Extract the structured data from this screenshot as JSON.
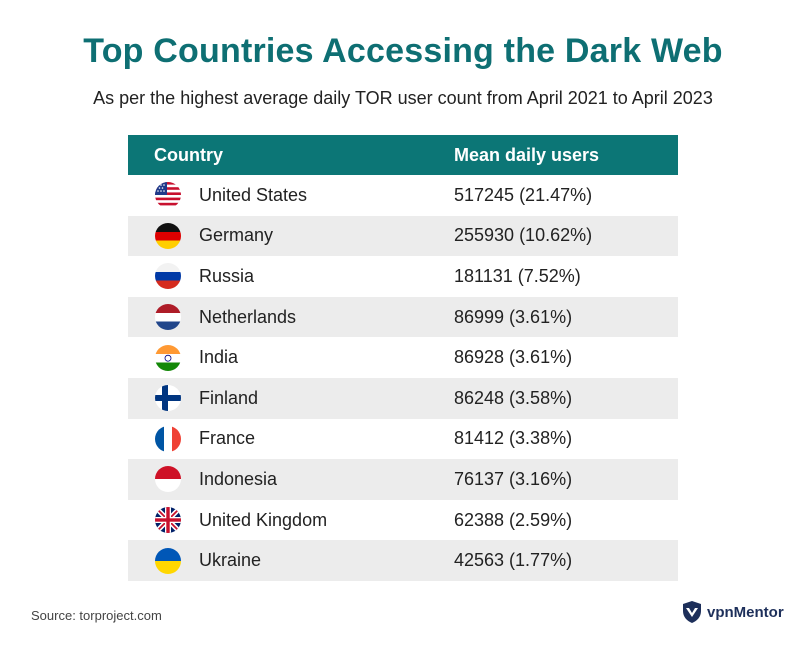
{
  "title": "Top Countries Accessing the Dark Web",
  "subtitle": "As per the highest average daily TOR user count from April 2021 to April 2023",
  "chart_data": {
    "type": "table",
    "columns": [
      "Country",
      "Mean daily users"
    ],
    "rows": [
      {
        "country": "United States",
        "flag": "us-flag-icon",
        "users": 517245,
        "display": "517245 (21.47%)"
      },
      {
        "country": "Germany",
        "flag": "de-flag-icon",
        "users": 255930,
        "display": "255930 (10.62%)"
      },
      {
        "country": "Russia",
        "flag": "ru-flag-icon",
        "users": 181131,
        "display": "181131 (7.52%)"
      },
      {
        "country": "Netherlands",
        "flag": "nl-flag-icon",
        "users": 86999,
        "display": "86999 (3.61%)"
      },
      {
        "country": "India",
        "flag": "in-flag-icon",
        "users": 86928,
        "display": "86928 (3.61%)"
      },
      {
        "country": "Finland",
        "flag": "fi-flag-icon",
        "users": 86248,
        "display": "86248 (3.58%)"
      },
      {
        "country": "France",
        "flag": "fr-flag-icon",
        "users": 81412,
        "display": "81412 (3.38%)"
      },
      {
        "country": "Indonesia",
        "flag": "id-flag-icon",
        "users": 76137,
        "display": "76137 (3.16%)"
      },
      {
        "country": "United Kingdom",
        "flag": "gb-flag-icon",
        "users": 62388,
        "display": "62388 (2.59%)"
      },
      {
        "country": "Ukraine",
        "flag": "ua-flag-icon",
        "users": 42563,
        "display": "42563 (1.77%)"
      }
    ]
  },
  "source": "Source: torproject.com",
  "brand": {
    "name": "vpnMentor",
    "logo_icon": "shield-logo-icon"
  },
  "colors": {
    "title": "#0e6f73",
    "header_bg": "#0c7676",
    "row_alt": "#ececec"
  }
}
